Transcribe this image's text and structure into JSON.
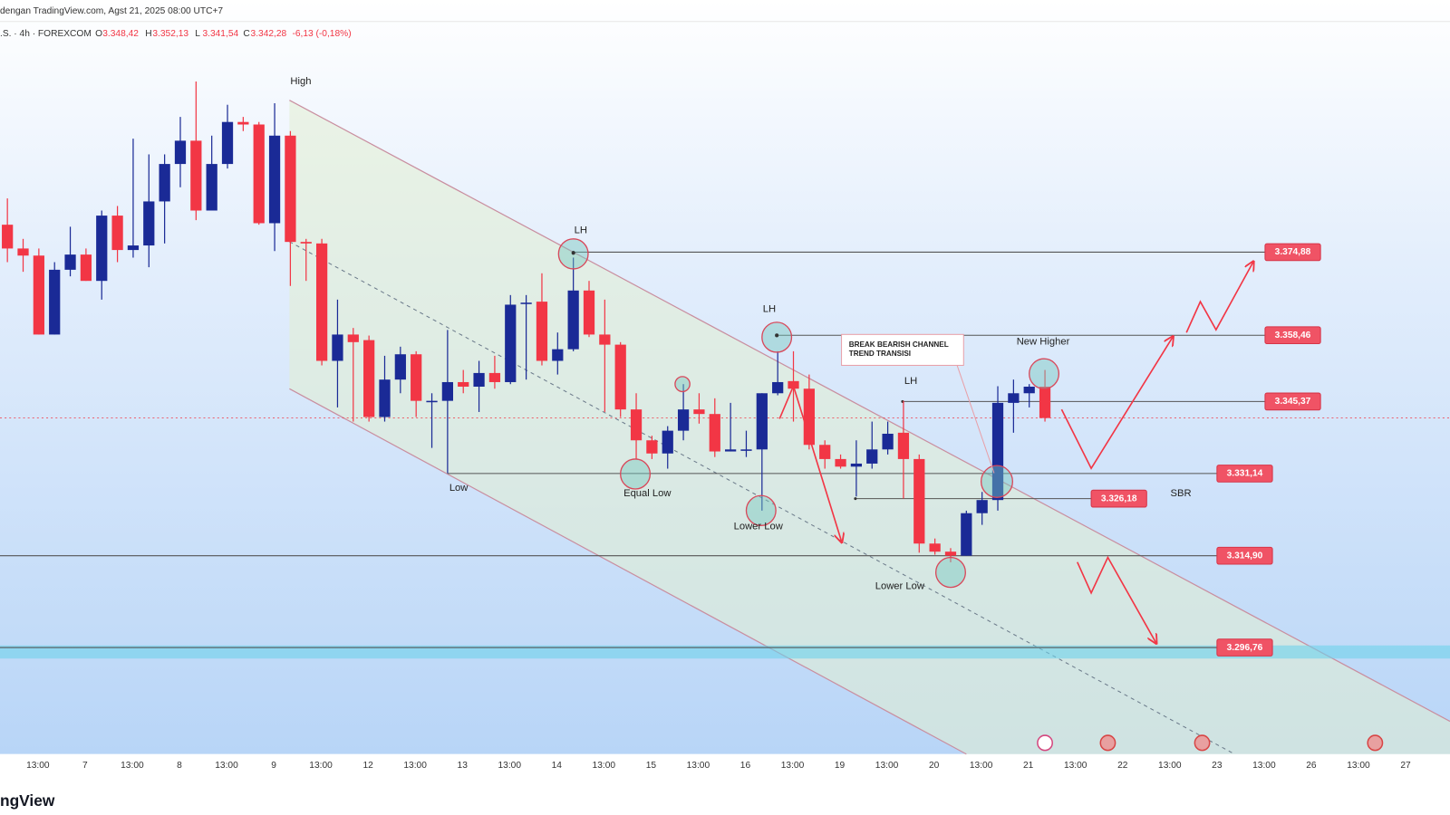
{
  "header": {
    "source": "dengan TradingView.com, Agst 21, 2025 08:00 UTC+7",
    "symbol": ".S. · 4h · FOREXCOM",
    "ohlc": [
      {
        "key": "O",
        "value": "3.348,42"
      },
      {
        "key": "H",
        "value": "3.352,13"
      },
      {
        "key": "L",
        "value": "3.341,54"
      },
      {
        "key": "C",
        "value": "3.342,28"
      }
    ],
    "change": "-6,13 (-0,18%)"
  },
  "logo": "ngView",
  "chart_data": {
    "type": "candlestick",
    "up_color": "#1a2a96",
    "down_color": "#f23645",
    "ylim": [
      3275.7,
      3424.7
    ],
    "open": [
      3380.3,
      3375.6,
      3374.2,
      3358.6,
      3371.4,
      3374.4,
      3369.2,
      3382.1,
      3375.3,
      3376.2,
      3384.9,
      3392.3,
      3396.9,
      3383.1,
      3392.3,
      3400.6,
      3400.1,
      3380.6,
      3397.9,
      3376.9,
      3376.6,
      3353.4,
      3358.6,
      3357.5,
      3342.3,
      3349.7,
      3354.7,
      3345.5,
      3345.5,
      3349.2,
      3348.3,
      3351.0,
      3349.2,
      3364.9,
      3365.1,
      3353.4,
      3355.7,
      3367.3,
      3358.6,
      3356.6,
      3343.8,
      3337.7,
      3335.1,
      3339.6,
      3343.8,
      3342.9,
      3335.5,
      3335.9,
      3335.9,
      3347.0,
      3349.4,
      3347.9,
      3336.8,
      3334.0,
      3332.5,
      3333.1,
      3335.9,
      3339.2,
      3334.0,
      3317.3,
      3315.7,
      3314.9,
      3323.3,
      3325.9,
      3345.1,
      3347.0,
      3348.3
    ],
    "high": [
      3385.5,
      3377.5,
      3375.6,
      3372.9,
      3379.9,
      3375.6,
      3383.1,
      3384.0,
      3397.3,
      3394.2,
      3394.2,
      3401.6,
      3408.6,
      3397.9,
      3404.0,
      3401.6,
      3400.6,
      3404.3,
      3398.8,
      3377.5,
      3377.5,
      3365.5,
      3359.9,
      3358.4,
      3354.4,
      3356.2,
      3355.3,
      3347.0,
      3359.5,
      3351.6,
      3353.4,
      3354.4,
      3366.4,
      3366.4,
      3370.7,
      3359.0,
      3373.8,
      3369.2,
      3365.5,
      3357.1,
      3347.0,
      3338.6,
      3340.5,
      3348.8,
      3347.0,
      3346.0,
      3345.1,
      3339.6,
      3347.0,
      3355.3,
      3355.3,
      3350.7,
      3337.7,
      3334.9,
      3337.7,
      3341.4,
      3341.4,
      3345.5,
      3334.9,
      3318.3,
      3316.4,
      3323.8,
      3327.5,
      3348.4,
      3349.7,
      3348.8,
      3351.6
    ],
    "low": [
      3372.9,
      3371.0,
      3358.6,
      3358.6,
      3370.1,
      3369.2,
      3365.5,
      3372.9,
      3373.8,
      3371.9,
      3376.6,
      3387.7,
      3381.2,
      3383.1,
      3391.4,
      3398.8,
      3380.3,
      3375.1,
      3368.2,
      3369.2,
      3352.5,
      3344.2,
      3341.4,
      3341.4,
      3341.4,
      3347.0,
      3342.3,
      3336.2,
      3331.2,
      3347.0,
      3343.3,
      3347.9,
      3348.8,
      3349.7,
      3352.5,
      3350.7,
      3355.3,
      3358.1,
      3343.3,
      3342.3,
      3334.0,
      3334.0,
      3332.1,
      3337.7,
      3341.0,
      3334.4,
      3335.5,
      3334.4,
      3323.8,
      3346.6,
      3341.4,
      3335.9,
      3332.1,
      3332.1,
      3326.6,
      3332.1,
      3334.9,
      3326.2,
      3315.5,
      3315.1,
      3313.6,
      3314.9,
      3321.0,
      3323.8,
      3339.2,
      3344.2,
      3341.4
    ],
    "close": [
      3375.6,
      3374.2,
      3358.6,
      3371.4,
      3374.4,
      3369.2,
      3382.1,
      3375.3,
      3376.2,
      3384.9,
      3392.3,
      3396.9,
      3383.1,
      3392.3,
      3400.6,
      3400.1,
      3380.6,
      3397.9,
      3376.9,
      3376.6,
      3353.4,
      3358.6,
      3357.1,
      3342.3,
      3349.7,
      3354.7,
      3345.5,
      3345.5,
      3349.2,
      3348.3,
      3351.0,
      3349.2,
      3364.5,
      3364.9,
      3353.4,
      3355.7,
      3367.3,
      3358.6,
      3356.6,
      3343.8,
      3337.7,
      3335.1,
      3339.6,
      3343.8,
      3342.9,
      3335.5,
      3335.9,
      3335.9,
      3347.0,
      3349.2,
      3347.9,
      3336.8,
      3334.0,
      3332.5,
      3333.1,
      3335.9,
      3339.0,
      3334.0,
      3317.3,
      3315.7,
      3314.9,
      3323.3,
      3325.9,
      3345.1,
      3347.0,
      3348.3,
      3342.1
    ],
    "xtick_labels": [
      "13:00",
      "7",
      "13:00",
      "8",
      "13:00",
      "9",
      "13:00",
      "12",
      "13:00",
      "13",
      "13:00",
      "14",
      "13:00",
      "15",
      "13:00",
      "16",
      "13:00",
      "19",
      "13:00",
      "20",
      "13:00",
      "21",
      "13:00",
      "22",
      "13:00",
      "23",
      "13:00",
      "26",
      "13:00",
      "27"
    ],
    "levels": [
      {
        "value": 3374.88,
        "label": "3.374,88"
      },
      {
        "value": 3358.46,
        "label": "3.358,46"
      },
      {
        "value": 3345.37,
        "label": "3.345,37"
      },
      {
        "value": 3331.14,
        "label": "3.331,14"
      },
      {
        "value": 3326.18,
        "label": "3.326,18"
      },
      {
        "value": 3314.9,
        "label": "3.314,90"
      },
      {
        "value": 3296.76,
        "label": "3.296,76"
      }
    ],
    "annotations": [
      "High",
      "LH",
      "LH",
      "LH",
      "Low",
      "Equal Low",
      "Lower Low",
      "Lower Low",
      "New Higher",
      "SBR"
    ],
    "callout": [
      "BREAK BEARISH CHANNEL",
      "TREND TRANSISI"
    ]
  }
}
